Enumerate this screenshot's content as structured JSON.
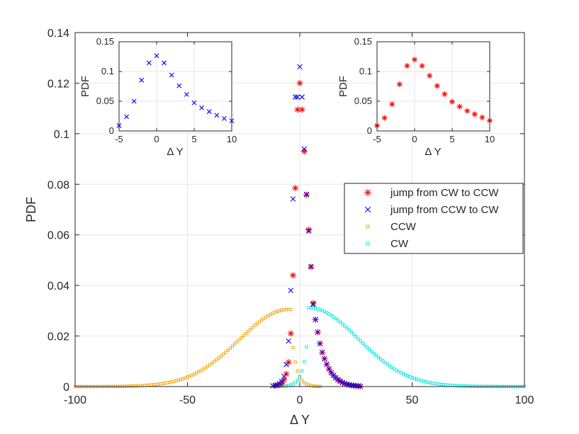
{
  "main_chart": {
    "xlabel": "Δ Y",
    "ylabel": "PDF",
    "xlim": [
      -100,
      100
    ],
    "ylim": [
      0,
      0.14
    ],
    "xticks": [
      "-100",
      "-50",
      "0",
      "50",
      "100"
    ],
    "yticks": [
      "0",
      "0.02",
      "0.04",
      "0.06",
      "0.08",
      "0.1",
      "0.12",
      "0.14"
    ],
    "legend": [
      "jump from CW to CCW",
      "jump from CCW to CW",
      "CCW",
      "CW"
    ]
  },
  "inset_left": {
    "xlabel": "Δ Y",
    "ylabel": "PDF",
    "xticks": [
      "-5",
      "0",
      "5",
      "10"
    ],
    "yticks": [
      "0",
      "0.05",
      "0.1",
      "0.15"
    ]
  },
  "inset_right": {
    "xlabel": "Δ Y",
    "ylabel": "PDF",
    "xticks": [
      "-5",
      "0",
      "5",
      "10"
    ],
    "yticks": [
      "0",
      "0.05",
      "0.1",
      "0.15"
    ]
  },
  "colors": {
    "red": "#ff0000",
    "blue": "#0000ff",
    "orange": "#f2a100",
    "cyan": "#00e5e5",
    "grid": "#e6e6e6",
    "axis": "#262626"
  },
  "chart_data": [
    {
      "type": "scatter",
      "xlabel": "Δ Y",
      "ylabel": "PDF",
      "xlim": [
        -100,
        100
      ],
      "ylim": [
        0,
        0.14
      ],
      "grid": true,
      "legend_position": "right",
      "series": [
        {
          "name": "jump from CW to CCW",
          "marker": "asterisk",
          "color": "#ff0000",
          "points": [
            [
              -11,
              0.0003
            ],
            [
              -10,
              0.0005
            ],
            [
              -9,
              0.0008
            ],
            [
              -8,
              0.0014
            ],
            [
              -7,
              0.0027
            ],
            [
              -6,
              0.005
            ],
            [
              -5,
              0.0096
            ],
            [
              -4,
              0.021
            ],
            [
              -3,
              0.044
            ],
            [
              -2,
              0.0785
            ],
            [
              -1,
              0.1095
            ],
            [
              0,
              0.12
            ],
            [
              1,
              0.1095
            ],
            [
              2,
              0.093
            ],
            [
              3,
              0.0758
            ],
            [
              4,
              0.062
            ],
            [
              5,
              0.0473
            ],
            [
              6,
              0.033
            ],
            [
              7,
              0.0265
            ],
            [
              8,
              0.0215
            ],
            [
              9,
              0.017
            ],
            [
              10,
              0.0135
            ],
            [
              11,
              0.011
            ],
            [
              12,
              0.0088
            ],
            [
              13,
              0.007
            ],
            [
              14,
              0.0055
            ],
            [
              15,
              0.0044
            ],
            [
              16,
              0.0035
            ],
            [
              17,
              0.0027
            ],
            [
              18,
              0.0021
            ],
            [
              19,
              0.0016
            ],
            [
              20,
              0.0012
            ],
            [
              21,
              0.0009
            ],
            [
              22,
              0.0007
            ],
            [
              23,
              0.0005
            ],
            [
              24,
              0.0004
            ],
            [
              25,
              0.0003
            ],
            [
              26,
              0.0002
            ],
            [
              27,
              0.0001
            ]
          ]
        },
        {
          "name": "jump from CCW to CW",
          "marker": "x",
          "color": "#0000ff",
          "points": [
            [
              -12,
              0.0003
            ],
            [
              -11,
              0.0005
            ],
            [
              -10,
              0.0007
            ],
            [
              -9,
              0.0012
            ],
            [
              -8,
              0.002
            ],
            [
              -7,
              0.004
            ],
            [
              -6,
              0.0087
            ],
            [
              -5,
              0.018
            ],
            [
              -4,
              0.038
            ],
            [
              -3,
              0.0742
            ],
            [
              -2,
              0.1145
            ],
            [
              -1,
              0.1145
            ],
            [
              0,
              0.1265
            ],
            [
              1,
              0.1145
            ],
            [
              2,
              0.094
            ],
            [
              3,
              0.076
            ],
            [
              4,
              0.0615
            ],
            [
              5,
              0.0475
            ],
            [
              6,
              0.0325
            ],
            [
              7,
              0.0265
            ],
            [
              8,
              0.0215
            ],
            [
              9,
              0.017
            ],
            [
              10,
              0.0135
            ],
            [
              11,
              0.011
            ],
            [
              12,
              0.0088
            ],
            [
              13,
              0.007
            ],
            [
              14,
              0.0055
            ],
            [
              15,
              0.0044
            ],
            [
              16,
              0.0035
            ],
            [
              17,
              0.0027
            ],
            [
              18,
              0.0021
            ],
            [
              19,
              0.0016
            ],
            [
              20,
              0.0012
            ],
            [
              21,
              0.0009
            ],
            [
              22,
              0.0007
            ],
            [
              23,
              0.0005
            ],
            [
              24,
              0.0004
            ],
            [
              25,
              0.0003
            ],
            [
              26,
              0.0002
            ],
            [
              27,
              0.0001
            ]
          ]
        },
        {
          "name": "CCW",
          "marker": "square",
          "color": "#f2a100",
          "curve": {
            "x_from": -100,
            "x_to": 9,
            "step": 1,
            "peak_x": -5,
            "peak_y": 0.0305,
            "sigma": 22,
            "cutoff_x": -4,
            "tail_end_x": 9
          }
        },
        {
          "name": "CW",
          "marker": "square",
          "color": "#00e5e5",
          "curve": {
            "x_from": -9,
            "x_to": 100,
            "step": 1,
            "peak_x": 4,
            "peak_y": 0.0312,
            "sigma": 22,
            "cutoff_x": 4,
            "tail_end_x": -9
          }
        }
      ]
    },
    {
      "type": "scatter",
      "xlabel": "Δ Y",
      "ylabel": "PDF",
      "xlim": [
        -5,
        10
      ],
      "ylim": [
        0,
        0.15
      ],
      "series": [
        {
          "name": "",
          "marker": "x",
          "color": "#0000ff",
          "points": [
            [
              -5,
              0.009
            ],
            [
              -4,
              0.024
            ],
            [
              -3,
              0.05
            ],
            [
              -2,
              0.0855
            ],
            [
              -1,
              0.1145
            ],
            [
              0,
              0.1265
            ],
            [
              1,
              0.1145
            ],
            [
              2,
              0.094
            ],
            [
              3,
              0.076
            ],
            [
              4,
              0.0615
            ],
            [
              5,
              0.0475
            ],
            [
              6,
              0.039
            ],
            [
              7,
              0.0325
            ],
            [
              8,
              0.0265
            ],
            [
              9,
              0.021
            ],
            [
              10,
              0.017
            ]
          ]
        }
      ]
    },
    {
      "type": "scatter",
      "xlabel": "Δ Y",
      "ylabel": "PDF",
      "xlim": [
        -5,
        10
      ],
      "ylim": [
        0,
        0.15
      ],
      "series": [
        {
          "name": "",
          "marker": "asterisk",
          "color": "#ff0000",
          "points": [
            [
              -5,
              0.009
            ],
            [
              -4,
              0.022
            ],
            [
              -3,
              0.045
            ],
            [
              -2,
              0.0785
            ],
            [
              -1,
              0.1095
            ],
            [
              0,
              0.12
            ],
            [
              1,
              0.1095
            ],
            [
              2,
              0.093
            ],
            [
              3,
              0.0758
            ],
            [
              4,
              0.062
            ],
            [
              5,
              0.0493
            ],
            [
              6,
              0.041
            ],
            [
              7,
              0.0338
            ],
            [
              8,
              0.0282
            ],
            [
              9,
              0.0228
            ],
            [
              10,
              0.0175
            ]
          ]
        }
      ]
    }
  ]
}
